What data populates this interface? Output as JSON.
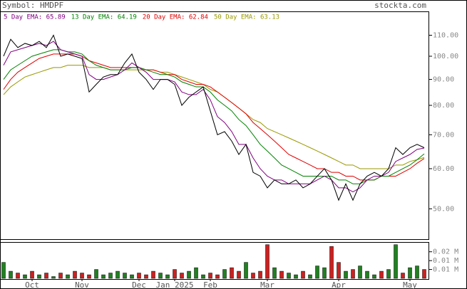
{
  "header": {
    "symbol": "Symbol: HMDPF",
    "site": "stockta.com"
  },
  "chart_data": [
    {
      "type": "line",
      "log_scale": true,
      "ylim": [
        43.7,
        121.8
      ],
      "yticks": [
        {
          "value": 110,
          "label": "110.00"
        },
        {
          "value": 100,
          "label": "100.00"
        },
        {
          "value": 90,
          "label": "90.00"
        },
        {
          "value": 80,
          "label": "80.00"
        },
        {
          "value": 70,
          "label": "70.00"
        },
        {
          "value": 60,
          "label": "60.00"
        },
        {
          "value": 50,
          "label": "50.00"
        }
      ],
      "categories": [
        null,
        null,
        null,
        null,
        "Oct",
        null,
        null,
        null,
        null,
        null,
        null,
        "Nov",
        null,
        null,
        null,
        null,
        null,
        null,
        null,
        "Dec",
        null,
        null,
        null,
        null,
        "Jan 2025",
        null,
        null,
        null,
        null,
        "Feb",
        null,
        null,
        null,
        null,
        null,
        null,
        null,
        "Mar",
        null,
        null,
        null,
        null,
        null,
        null,
        null,
        null,
        null,
        "Apr",
        null,
        null,
        null,
        null,
        null,
        null,
        null,
        null,
        null,
        "May",
        null,
        null
      ],
      "close": {
        "color": "#000000",
        "values": [
          100,
          108,
          104,
          106,
          105,
          107,
          104,
          110,
          100,
          101,
          100,
          99,
          85,
          88,
          91,
          92,
          92,
          97,
          101,
          93,
          90,
          86,
          90,
          90,
          88,
          80,
          83,
          85,
          87,
          78,
          70,
          71,
          68,
          64,
          67,
          59,
          58,
          55,
          57,
          56,
          56,
          57,
          55,
          56,
          58,
          60,
          57,
          52,
          56,
          52,
          56,
          58,
          59,
          58,
          60,
          66,
          64,
          66,
          67,
          66
        ]
      },
      "series": [
        {
          "name": "5 Day EMA: 65.89",
          "color": "#800080",
          "values": [
            96,
            102,
            103,
            104,
            105,
            106,
            105,
            107,
            103,
            102,
            101,
            100,
            92,
            90,
            90,
            91,
            92,
            94,
            97,
            95,
            93,
            90,
            90,
            90,
            89,
            85,
            84,
            84,
            86,
            82,
            76,
            74,
            71,
            67,
            67,
            63,
            60,
            58,
            57,
            57,
            56,
            56,
            56,
            56,
            57,
            58,
            57,
            55,
            55,
            54,
            55,
            57,
            58,
            58,
            59,
            62,
            63,
            64,
            65.5,
            65.89
          ]
        },
        {
          "name": "13 Day EMA: 64.19",
          "color": "#008000",
          "values": [
            90,
            94,
            96,
            98,
            100,
            101,
            102,
            103,
            103,
            102,
            102,
            101,
            98,
            96,
            95,
            94,
            94,
            94,
            95,
            95,
            94,
            93,
            92,
            92,
            91,
            89,
            88,
            87,
            87,
            85,
            82,
            80,
            78,
            75,
            73,
            70,
            67,
            65,
            63,
            61,
            60,
            59,
            58,
            58,
            58,
            58,
            58,
            57,
            57,
            56,
            56,
            57,
            57,
            58,
            58,
            59,
            60,
            61,
            62.5,
            64.19
          ]
        },
        {
          "name": "20 Day EMA: 62.84",
          "color": "#e00000",
          "values": [
            86,
            90,
            93,
            95,
            97,
            99,
            100,
            101,
            101,
            101,
            101,
            100,
            98,
            97,
            96,
            95,
            95,
            95,
            95,
            95,
            94,
            94,
            93,
            92,
            92,
            90,
            89,
            88,
            88,
            87,
            85,
            83,
            81,
            79,
            77,
            74,
            72,
            70,
            68,
            66,
            64,
            63,
            62,
            61,
            60,
            60,
            59,
            59,
            58,
            58,
            57,
            57,
            57,
            58,
            58,
            58,
            59,
            60,
            61.5,
            62.84
          ]
        },
        {
          "name": "50 Day EMA: 63.13",
          "color": "#999900",
          "values": [
            84,
            87,
            89,
            91,
            92,
            93,
            94,
            95,
            95,
            96,
            96,
            96,
            95,
            95,
            95,
            94,
            94,
            94,
            94,
            94,
            94,
            94,
            93,
            93,
            92,
            91,
            90,
            89,
            88,
            86,
            85,
            83,
            81,
            79,
            77,
            75,
            74,
            72,
            71,
            70,
            69,
            68,
            67,
            66,
            65,
            64,
            63,
            62,
            61,
            61,
            60,
            60,
            60,
            60,
            60,
            61,
            61,
            62,
            62.5,
            63.13
          ]
        }
      ]
    },
    {
      "type": "bar",
      "ylim": [
        0,
        0.0197
      ],
      "yticks": [
        {
          "value": 0.015,
          "label": "0.02 M"
        },
        {
          "value": 0.01,
          "label": "0.01 M"
        },
        {
          "value": 0.005,
          "label": "0.01 M"
        }
      ],
      "up_color": "#208020",
      "down_color": "#cc2020",
      "values": [
        0.009,
        0.004,
        0.003,
        0.002,
        0.004,
        0.002,
        0.003,
        0.001,
        0.003,
        0.002,
        0.004,
        0.003,
        0.002,
        0.005,
        0.002,
        0.003,
        0.004,
        0.003,
        0.002,
        0.003,
        0.002,
        0.004,
        0.003,
        0.002,
        0.005,
        0.003,
        0.004,
        0.006,
        0.002,
        0.003,
        0.002,
        0.005,
        0.006,
        0.004,
        0.009,
        0.003,
        0.004,
        0.019,
        0.006,
        0.004,
        0.003,
        0.002,
        0.004,
        0.002,
        0.007,
        0.006,
        0.018,
        0.009,
        0.004,
        0.005,
        0.007,
        0.004,
        0.002,
        0.004,
        0.005,
        0.019,
        0.003,
        0.006,
        0.007,
        0.005
      ]
    }
  ]
}
